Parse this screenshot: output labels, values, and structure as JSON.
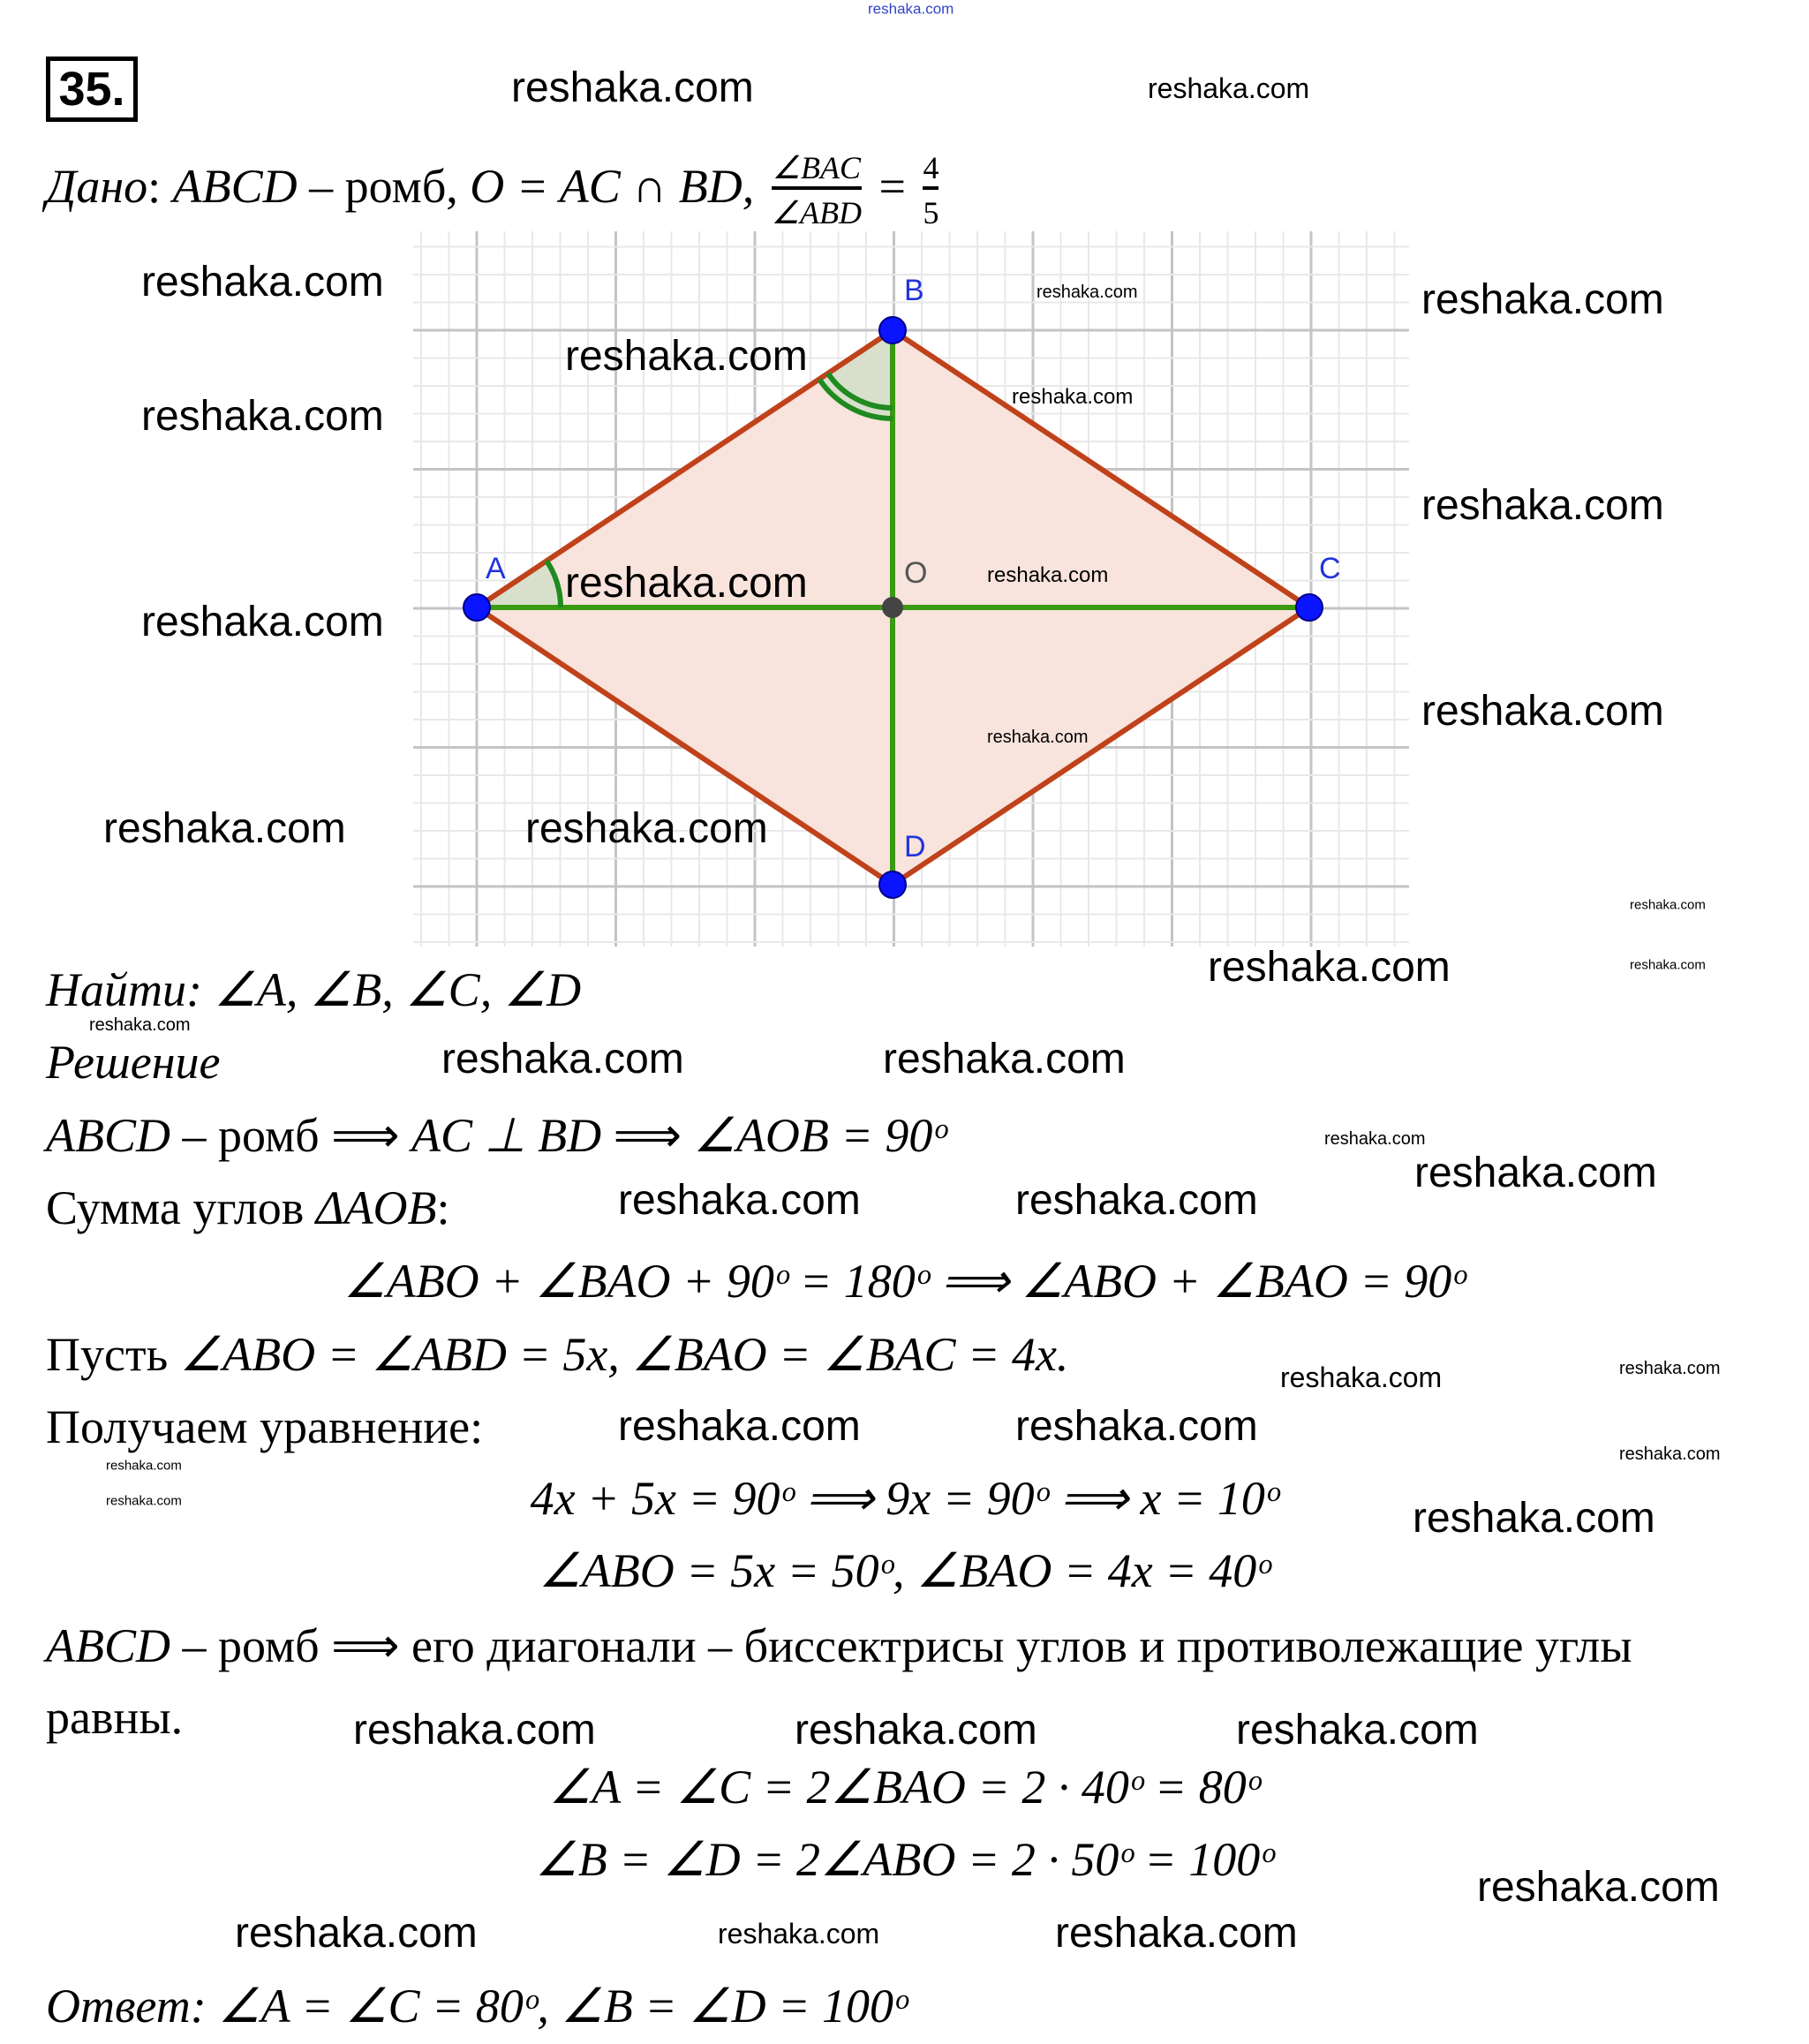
{
  "problem_number": "35.",
  "given": {
    "label": "Дано",
    "colon": ":",
    "figure": "ABCD",
    "type": " – ромб,",
    "intersection": "O = AC ∩ BD,",
    "ratio_num": "∠BAC",
    "ratio_den": "∠ABD",
    "equals": "=",
    "value_num": "4",
    "value_den": "5"
  },
  "figure": {
    "points": {
      "A": "A",
      "B": "B",
      "C": "C",
      "D": "D",
      "O": "O"
    },
    "colors": {
      "sides": "#c0421a",
      "fill": "#f8e4dc",
      "diagonals": "#3a9a12",
      "points": "#0a14ff",
      "center": "#444444",
      "grid_major": "#c4c4c4",
      "grid_minor": "#e8e8e8",
      "angle": "#1f8a1f",
      "angle_fill": "#d8e0cc",
      "label": "#2233dd"
    }
  },
  "find": {
    "label": "Найти",
    "items": ": ∠A, ∠B, ∠C, ∠D"
  },
  "solution_label": "Решение",
  "solution": {
    "l1_a": "ABCD",
    "l1_b": " – ромб ⟹ ",
    "l1_c": "AC ⊥ BD",
    "l1_d": " ⟹ ",
    "l1_e": "∠AOB = 90ᵒ",
    "l2_a": "Сумма углов ",
    "l2_b": "ΔAOB",
    "l2_c": ":",
    "l3": "∠ABO + ∠BAO + 90ᵒ = 180ᵒ ⟹ ∠ABO + ∠BAO = 90ᵒ",
    "l4_a": "Пусть  ",
    "l4_b": "∠ABO = ∠ABD = 5x,  ∠BAO = ∠BAC = 4x.",
    "l5": "Получаем уравнение:",
    "l6": "4x + 5x = 90ᵒ ⟹ 9x = 90ᵒ ⟹ x = 10ᵒ",
    "l7": "∠ABO = 5x = 50ᵒ,      ∠BAO = 4x = 40ᵒ",
    "l8_a": "ABCD",
    "l8_b": " – ромб ⟹ его диагонали – биссектрисы углов и противолежащие углы",
    "l9": "равны.",
    "l10": "∠A = ∠C = 2∠BAO = 2 · 40ᵒ = 80ᵒ",
    "l11": "∠B =  ∠D = 2∠ABO = 2 · 50ᵒ = 100ᵒ"
  },
  "answer": {
    "label": "Ответ",
    "text": ": ∠A = ∠C = 80ᵒ, ∠B =  ∠D = 100ᵒ"
  },
  "watermark": "reshaka.com"
}
